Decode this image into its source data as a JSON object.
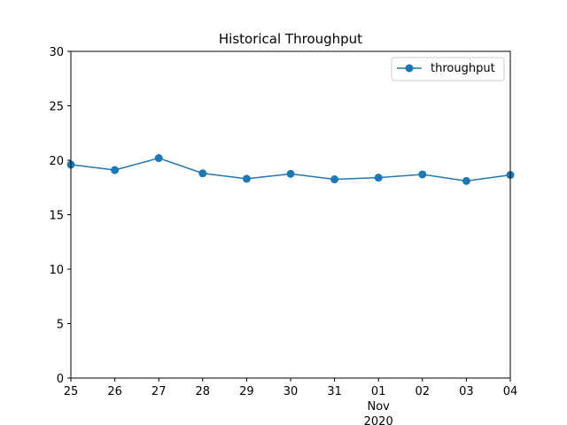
{
  "chart_data": {
    "type": "line",
    "title": "Historical Throughput",
    "xlabel": "",
    "ylabel": "",
    "x": [
      "2020-10-25",
      "2020-10-26",
      "2020-10-27",
      "2020-10-28",
      "2020-10-29",
      "2020-10-30",
      "2020-10-31",
      "2020-11-01",
      "2020-11-02",
      "2020-11-03",
      "2020-11-04"
    ],
    "x_tick_labels": [
      "25",
      "26",
      "27",
      "28",
      "29",
      "30",
      "31",
      "01",
      "02",
      "03",
      "04"
    ],
    "x_month_label": "Nov",
    "x_year_label": "2020",
    "series": [
      {
        "name": "throughput",
        "values": [
          19.6,
          19.1,
          20.2,
          18.8,
          18.3,
          18.75,
          18.25,
          18.4,
          18.7,
          18.1,
          18.65
        ]
      }
    ],
    "ylim": [
      0,
      30
    ],
    "y_ticks": [
      0,
      5,
      10,
      15,
      20,
      25,
      30
    ],
    "y_tick_labels": [
      "0",
      "5",
      "10",
      "15",
      "20",
      "25",
      "30"
    ],
    "grid": false,
    "legend_position": "top-right",
    "series_color": "#1f77b4",
    "marker": "circle"
  }
}
